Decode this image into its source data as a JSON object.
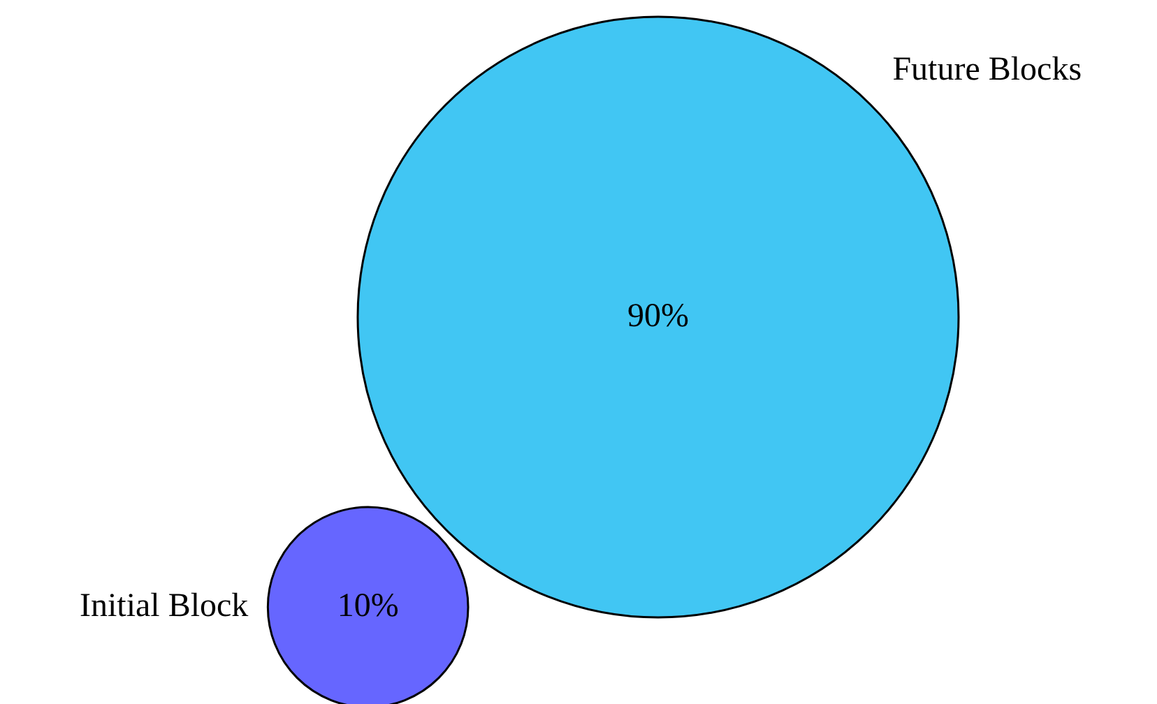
{
  "chart_data": {
    "type": "other",
    "categories": [
      "Future Blocks",
      "Initial Block"
    ],
    "values": [
      90,
      10
    ],
    "value_labels": [
      "90%",
      "10%"
    ],
    "colors": [
      "#41c6f3",
      "#6666ff"
    ]
  }
}
